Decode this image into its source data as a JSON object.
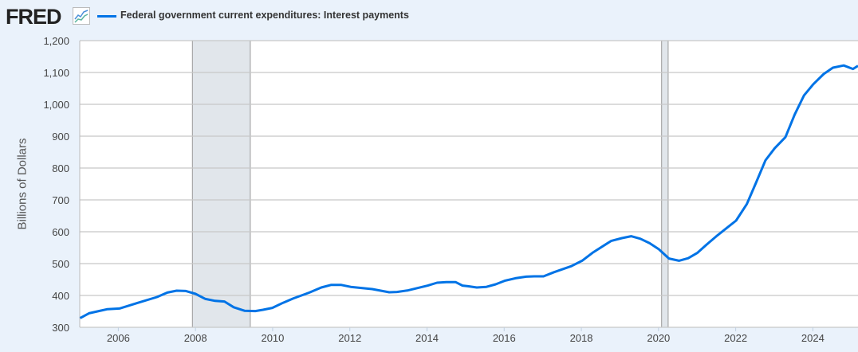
{
  "header": {
    "logo": "FRED",
    "legend_label": "Federal government current expenditures: Interest payments"
  },
  "colors": {
    "series": "#0073e6",
    "recession": "#e1e6eb",
    "grid": "#c8c8c8"
  },
  "chart_data": {
    "type": "line",
    "title": "Federal government current expenditures: Interest payments",
    "xlabel": "",
    "ylabel": "Billions of Dollars",
    "xlim": [
      2005.0,
      2025.17
    ],
    "ylim": [
      300,
      1200
    ],
    "grid": true,
    "legend_placement": "top-left",
    "x_ticks": [
      2006,
      2008,
      2010,
      2012,
      2014,
      2016,
      2018,
      2020,
      2022,
      2024
    ],
    "x_tick_labels": [
      "2006",
      "2008",
      "2010",
      "2012",
      "2014",
      "2016",
      "2018",
      "2020",
      "2022",
      "2024"
    ],
    "y_ticks": [
      300,
      400,
      500,
      600,
      700,
      800,
      900,
      1000,
      1100,
      1200
    ],
    "y_tick_labels": [
      "300",
      "400",
      "500",
      "600",
      "700",
      "800",
      "900",
      "1,000",
      "1,100",
      "1,200"
    ],
    "recessions": [
      [
        2007.92,
        2009.42
      ],
      [
        2020.08,
        2020.25
      ]
    ],
    "series": [
      {
        "name": "Federal government current expenditures: Interest payments",
        "points": [
          [
            2005.01,
            329
          ],
          [
            2005.24,
            344
          ],
          [
            2005.72,
            357
          ],
          [
            2006.03,
            359
          ],
          [
            2006.51,
            377
          ],
          [
            2007.0,
            395
          ],
          [
            2007.27,
            409
          ],
          [
            2007.51,
            415
          ],
          [
            2007.75,
            414
          ],
          [
            2008.0,
            405
          ],
          [
            2008.26,
            389
          ],
          [
            2008.51,
            383
          ],
          [
            2008.75,
            381
          ],
          [
            2008.99,
            363
          ],
          [
            2009.27,
            352
          ],
          [
            2009.55,
            351
          ],
          [
            2009.75,
            355
          ],
          [
            2009.99,
            361
          ],
          [
            2010.27,
            377
          ],
          [
            2010.54,
            391
          ],
          [
            2010.95,
            409
          ],
          [
            2011.26,
            425
          ],
          [
            2011.51,
            433
          ],
          [
            2011.78,
            433
          ],
          [
            2012.02,
            427
          ],
          [
            2012.58,
            420
          ],
          [
            2013.02,
            410
          ],
          [
            2013.22,
            411
          ],
          [
            2013.51,
            416
          ],
          [
            2014.02,
            431
          ],
          [
            2014.26,
            440
          ],
          [
            2014.5,
            442
          ],
          [
            2014.74,
            442
          ],
          [
            2014.92,
            431
          ],
          [
            2015.06,
            429
          ],
          [
            2015.29,
            425
          ],
          [
            2015.54,
            427
          ],
          [
            2015.78,
            435
          ],
          [
            2016.01,
            446
          ],
          [
            2016.29,
            454
          ],
          [
            2016.57,
            459
          ],
          [
            2016.78,
            460
          ],
          [
            2017.02,
            460
          ],
          [
            2017.29,
            473
          ],
          [
            2017.74,
            492
          ],
          [
            2018.02,
            509
          ],
          [
            2018.29,
            534
          ],
          [
            2018.77,
            571
          ],
          [
            2019.05,
            580
          ],
          [
            2019.29,
            586
          ],
          [
            2019.53,
            578
          ],
          [
            2019.77,
            564
          ],
          [
            2020.01,
            545
          ],
          [
            2020.27,
            516
          ],
          [
            2020.53,
            509
          ],
          [
            2020.77,
            517
          ],
          [
            2021.01,
            534
          ],
          [
            2021.25,
            560
          ],
          [
            2021.53,
            589
          ],
          [
            2021.77,
            612
          ],
          [
            2022.01,
            635
          ],
          [
            2022.29,
            687
          ],
          [
            2022.53,
            755
          ],
          [
            2022.77,
            824
          ],
          [
            2023.01,
            862
          ],
          [
            2023.29,
            897
          ],
          [
            2023.53,
            968
          ],
          [
            2023.77,
            1028
          ],
          [
            2024.01,
            1063
          ],
          [
            2024.28,
            1095
          ],
          [
            2024.52,
            1115
          ],
          [
            2024.8,
            1122
          ],
          [
            2025.04,
            1111
          ],
          [
            2025.17,
            1121
          ]
        ]
      }
    ]
  }
}
